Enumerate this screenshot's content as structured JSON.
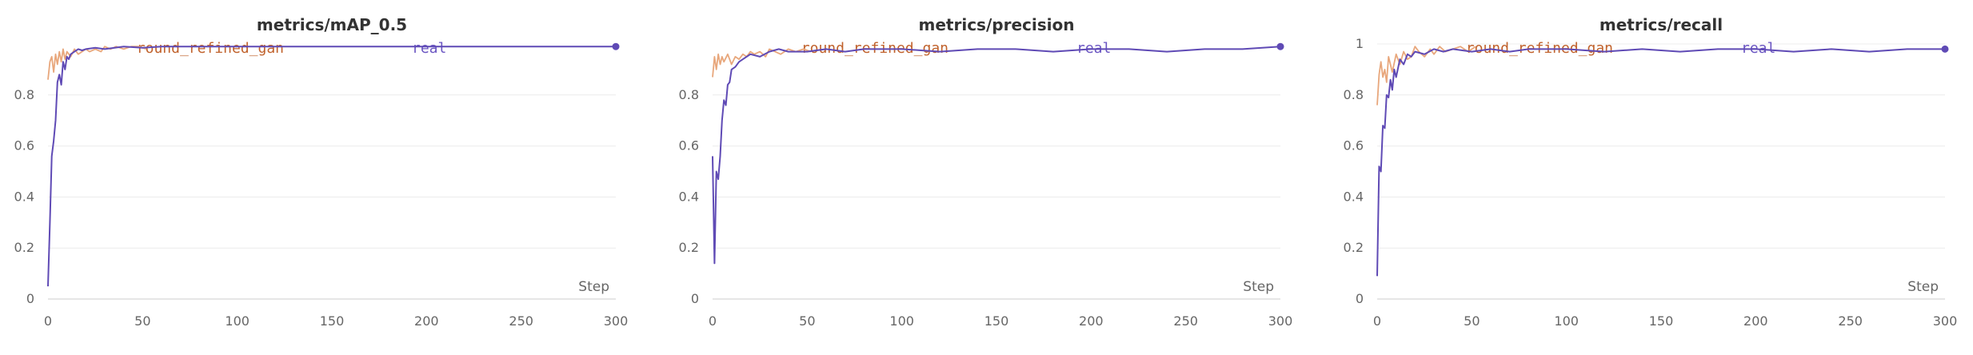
{
  "colors": {
    "round_refined_gan": "#E8A77C",
    "real": "#5F4AB5",
    "legend_gan_text": "#C0612B",
    "legend_real_text": "#6A55C2",
    "grid": "#ECECEC",
    "axis": "#CCCCCC"
  },
  "chart_data": [
    {
      "type": "line",
      "title": "metrics/mAP_0.5",
      "xlabel": "Step",
      "xlim": [
        0,
        300
      ],
      "ylim": [
        0,
        1.0
      ],
      "xticks": [
        "0",
        "50",
        "100",
        "150",
        "200",
        "250",
        "300"
      ],
      "yticks": [
        "0",
        "0.2",
        "0.4",
        "0.6",
        "0.8"
      ],
      "legend": [
        "round_refined_gan",
        "real"
      ],
      "series": [
        {
          "name": "round_refined_gan",
          "x": [
            0,
            1,
            2,
            3,
            4,
            5,
            6,
            7,
            8,
            9,
            10,
            12,
            14,
            16,
            18,
            20,
            22,
            25,
            28,
            30,
            33,
            36,
            40,
            44,
            48,
            52
          ],
          "y": [
            0.86,
            0.93,
            0.95,
            0.89,
            0.96,
            0.92,
            0.97,
            0.93,
            0.98,
            0.94,
            0.97,
            0.95,
            0.98,
            0.96,
            0.97,
            0.98,
            0.97,
            0.98,
            0.97,
            0.99,
            0.98,
            0.99,
            0.98,
            0.99,
            0.99,
            0.98
          ]
        },
        {
          "name": "real",
          "x": [
            0,
            1,
            2,
            3,
            4,
            5,
            6,
            7,
            8,
            9,
            10,
            11,
            12,
            14,
            16,
            18,
            20,
            25,
            30,
            40,
            50,
            60,
            80,
            100,
            120,
            140,
            160,
            180,
            200,
            220,
            240,
            260,
            280,
            300
          ],
          "y": [
            0.05,
            0.3,
            0.56,
            0.62,
            0.7,
            0.85,
            0.88,
            0.84,
            0.93,
            0.9,
            0.95,
            0.94,
            0.96,
            0.97,
            0.98,
            0.975,
            0.98,
            0.985,
            0.98,
            0.99,
            0.985,
            0.99,
            0.99,
            0.99,
            0.99,
            0.99,
            0.99,
            0.99,
            0.99,
            0.99,
            0.99,
            0.99,
            0.99,
            0.99
          ]
        }
      ]
    },
    {
      "type": "line",
      "title": "metrics/precision",
      "xlabel": "Step",
      "xlim": [
        0,
        300
      ],
      "ylim": [
        0,
        1.0
      ],
      "xticks": [
        "0",
        "50",
        "100",
        "150",
        "200",
        "250",
        "300"
      ],
      "yticks": [
        "0",
        "0.2",
        "0.4",
        "0.6",
        "0.8"
      ],
      "legend": [
        "round_refined_gan",
        "real"
      ],
      "series": [
        {
          "name": "round_refined_gan",
          "x": [
            0,
            1,
            2,
            3,
            4,
            5,
            6,
            8,
            10,
            12,
            14,
            16,
            18,
            20,
            22,
            25,
            28,
            30,
            33,
            36,
            40,
            44,
            48,
            52
          ],
          "y": [
            0.87,
            0.95,
            0.9,
            0.96,
            0.92,
            0.95,
            0.93,
            0.96,
            0.92,
            0.95,
            0.94,
            0.96,
            0.95,
            0.97,
            0.96,
            0.97,
            0.95,
            0.98,
            0.97,
            0.96,
            0.98,
            0.97,
            0.98,
            0.97
          ]
        },
        {
          "name": "real",
          "x": [
            0,
            1,
            2,
            3,
            4,
            5,
            6,
            7,
            8,
            9,
            10,
            12,
            14,
            16,
            18,
            20,
            25,
            30,
            35,
            40,
            50,
            60,
            70,
            80,
            100,
            120,
            140,
            160,
            180,
            200,
            220,
            240,
            260,
            280,
            300
          ],
          "y": [
            0.56,
            0.14,
            0.5,
            0.47,
            0.56,
            0.7,
            0.78,
            0.76,
            0.84,
            0.85,
            0.9,
            0.91,
            0.93,
            0.94,
            0.95,
            0.96,
            0.95,
            0.97,
            0.98,
            0.97,
            0.97,
            0.98,
            0.97,
            0.98,
            0.98,
            0.97,
            0.98,
            0.98,
            0.97,
            0.98,
            0.98,
            0.97,
            0.98,
            0.98,
            0.99
          ]
        }
      ]
    },
    {
      "type": "line",
      "title": "metrics/recall",
      "xlabel": "Step",
      "xlim": [
        0,
        300
      ],
      "ylim": [
        0,
        1.0
      ],
      "xticks": [
        "0",
        "50",
        "100",
        "150",
        "200",
        "250",
        "300"
      ],
      "yticks": [
        "0",
        "0.2",
        "0.4",
        "0.6",
        "0.8",
        "1"
      ],
      "legend": [
        "round_refined_gan",
        "real"
      ],
      "series": [
        {
          "name": "round_refined_gan",
          "x": [
            0,
            1,
            2,
            3,
            4,
            5,
            6,
            8,
            10,
            12,
            14,
            16,
            18,
            20,
            22,
            25,
            28,
            30,
            33,
            36,
            40,
            44,
            48,
            52
          ],
          "y": [
            0.76,
            0.88,
            0.93,
            0.87,
            0.9,
            0.85,
            0.95,
            0.89,
            0.96,
            0.92,
            0.97,
            0.94,
            0.95,
            0.99,
            0.97,
            0.95,
            0.98,
            0.96,
            0.99,
            0.97,
            0.98,
            0.99,
            0.97,
            0.99
          ]
        },
        {
          "name": "real",
          "x": [
            0,
            1,
            2,
            3,
            4,
            5,
            6,
            7,
            8,
            9,
            10,
            12,
            14,
            16,
            18,
            20,
            25,
            30,
            35,
            40,
            50,
            60,
            70,
            80,
            100,
            120,
            140,
            160,
            180,
            200,
            220,
            240,
            260,
            280,
            300
          ],
          "y": [
            0.09,
            0.52,
            0.5,
            0.68,
            0.67,
            0.8,
            0.79,
            0.86,
            0.82,
            0.9,
            0.87,
            0.94,
            0.92,
            0.96,
            0.95,
            0.97,
            0.96,
            0.98,
            0.97,
            0.98,
            0.97,
            0.98,
            0.97,
            0.98,
            0.98,
            0.97,
            0.98,
            0.97,
            0.98,
            0.98,
            0.97,
            0.98,
            0.97,
            0.98,
            0.98
          ]
        }
      ]
    }
  ]
}
